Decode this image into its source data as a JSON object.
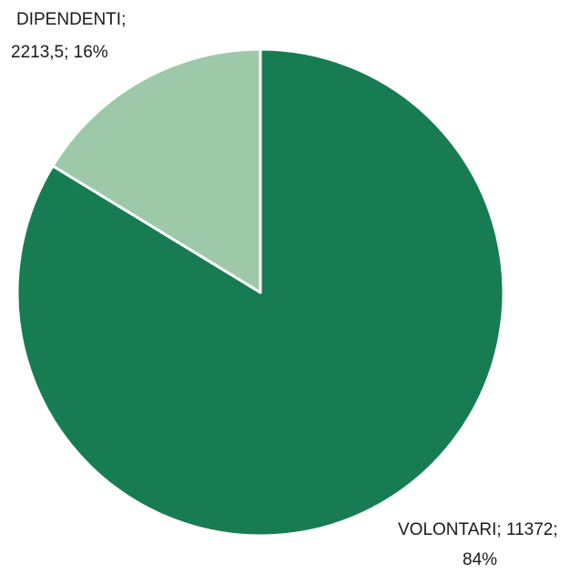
{
  "chart_data": {
    "type": "pie",
    "slices": [
      {
        "label": "VOLONTARI",
        "value": 11372,
        "percent": "84%",
        "value_text": "11372",
        "color": "#177C52"
      },
      {
        "label": "DIPENDENTI",
        "value": 2213.5,
        "percent": "16%",
        "value_text": "2213,5",
        "color": "#9DC9A9"
      }
    ],
    "data_labels": [
      {
        "line1": "DIPENDENTI;",
        "line2": "2213,5; 16%"
      },
      {
        "line1": "VOLONTARI; 11372;",
        "line2": "84%"
      }
    ],
    "legend": "none",
    "slice_border_color": "#ffffff"
  }
}
